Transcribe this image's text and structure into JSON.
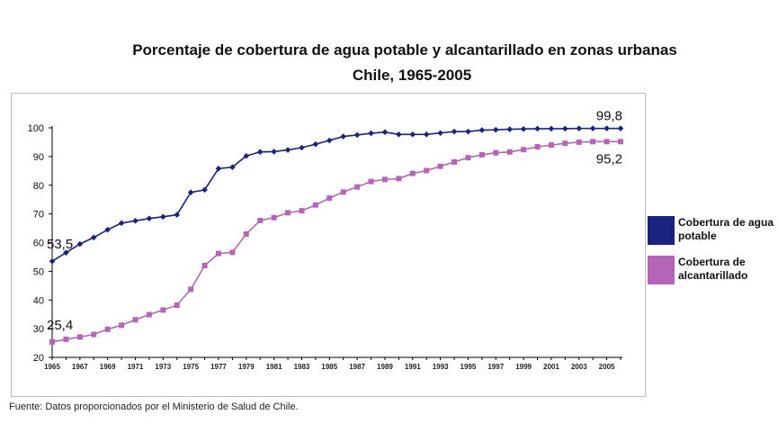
{
  "chart_data": {
    "type": "line",
    "title": "Porcentaje de cobertura de agua potable y alcantarillado en zonas urbanas",
    "subtitle": "Chile, 1965-2005",
    "xlabel": "",
    "ylabel": "",
    "ylim": [
      20,
      100
    ],
    "yticks": [
      "20",
      "30",
      "40",
      "50",
      "60",
      "70",
      "80",
      "90",
      "100"
    ],
    "xtick_labels": [
      "1965",
      "1967",
      "1969",
      "1971",
      "1973",
      "1975",
      "1977",
      "1979",
      "1981",
      "1983",
      "1985",
      "1987",
      "1989",
      "1991",
      "1993",
      "1995",
      "1997",
      "1999",
      "2001",
      "2003",
      "2005"
    ],
    "x": [
      1965,
      1966,
      1967,
      1968,
      1969,
      1970,
      1971,
      1972,
      1973,
      1974,
      1975,
      1976,
      1977,
      1978,
      1979,
      1980,
      1981,
      1982,
      1983,
      1984,
      1985,
      1986,
      1987,
      1988,
      1989,
      1990,
      1991,
      1992,
      1993,
      1994,
      1995,
      1996,
      1997,
      1998,
      1999,
      2000,
      2001,
      2002,
      2003,
      2004,
      2005,
      2006
    ],
    "series": [
      {
        "name": "Cobertura de agua potable",
        "color": "#1a237e",
        "marker": "diamond",
        "values": [
          53.5,
          56.5,
          59.5,
          61.8,
          64.5,
          66.8,
          67.6,
          68.4,
          69.0,
          69.7,
          77.5,
          78.4,
          85.8,
          86.3,
          90.2,
          91.6,
          91.7,
          92.3,
          93.1,
          94.3,
          95.6,
          97.0,
          97.5,
          98.1,
          98.5,
          97.7,
          97.7,
          97.7,
          98.2,
          98.7,
          98.7,
          99.2,
          99.3,
          99.5,
          99.6,
          99.7,
          99.7,
          99.7,
          99.8,
          99.8,
          99.8,
          99.8
        ],
        "start_label": "53,5",
        "end_label": "99,8"
      },
      {
        "name": "Cobertura de alcantarillado",
        "color": "#b565b8",
        "marker": "square",
        "values": [
          25.4,
          26.3,
          27.1,
          28.0,
          29.8,
          31.2,
          33.1,
          34.9,
          36.5,
          38.2,
          43.7,
          52.0,
          56.2,
          56.6,
          63.0,
          67.7,
          68.7,
          70.4,
          71.1,
          73.1,
          75.5,
          77.6,
          79.4,
          81.3,
          82.0,
          82.3,
          84.1,
          85.1,
          86.6,
          88.1,
          89.6,
          90.6,
          91.3,
          91.6,
          92.4,
          93.4,
          94.0,
          94.6,
          95.0,
          95.2,
          95.2,
          95.2
        ],
        "start_label": "25,4",
        "end_label": "95,2"
      }
    ],
    "legend_position": "right",
    "grid": false
  },
  "source": "Fuente: Datos proporcionados por el Ministerio de Salud de Chile."
}
